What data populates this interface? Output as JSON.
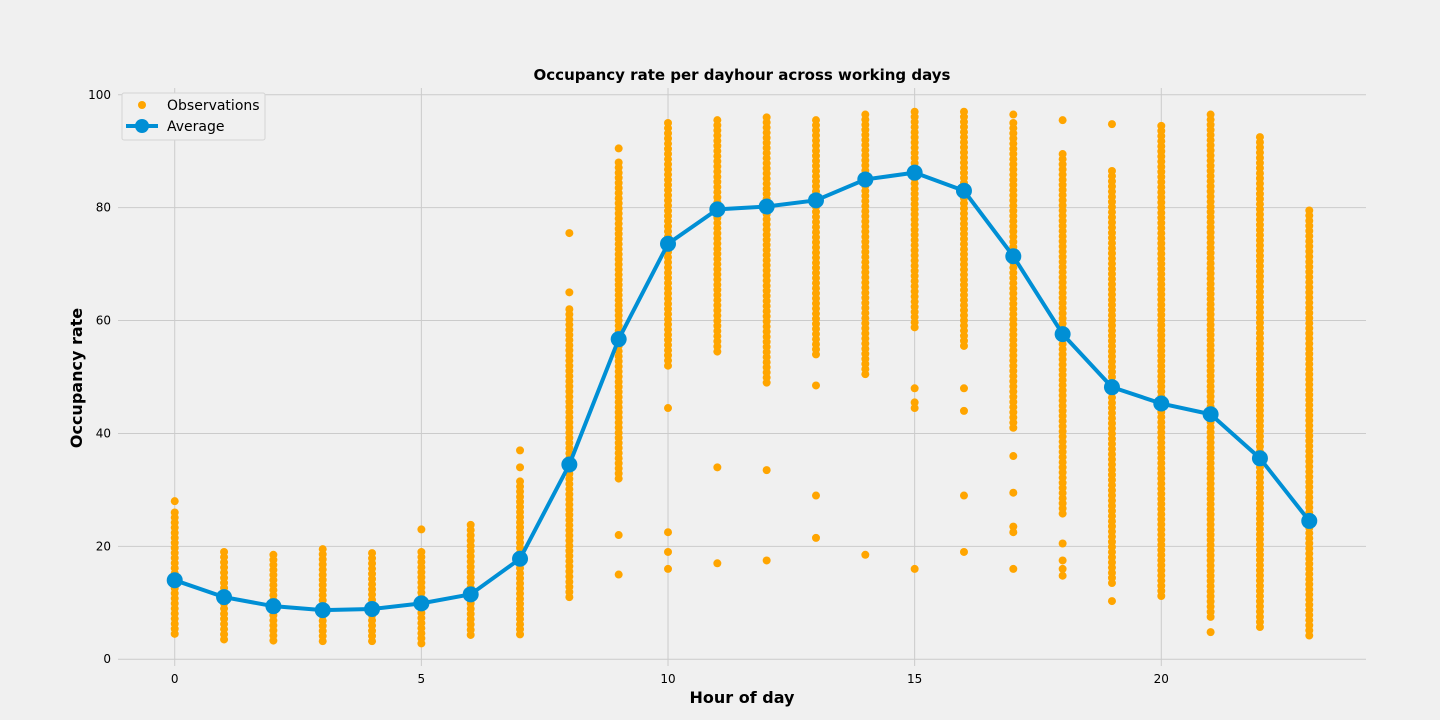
{
  "chart_data": {
    "type": "scatter",
    "title": "Occupancy rate per dayhour across working days",
    "xlabel": "Hour of day",
    "ylabel": "Occupancy rate",
    "xlim": [
      -1.15,
      24.15
    ],
    "ylim": [
      -1.2,
      101.2
    ],
    "xticks": [
      0,
      5,
      10,
      15,
      20
    ],
    "yticks": [
      0,
      20,
      40,
      60,
      80,
      100
    ],
    "grid": true,
    "legend_position": "top-left",
    "colors": {
      "observations": "#ffa500",
      "average": "#008fd5",
      "background": "#f0f0f0",
      "grid": "#cbcbcb"
    },
    "series": [
      {
        "name": "Observations",
        "kind": "scatter",
        "ranges": [
          {
            "x": 0,
            "min": 4.5,
            "max": 26,
            "outliers": [
              28
            ]
          },
          {
            "x": 1,
            "min": 3.5,
            "max": 19,
            "outliers": []
          },
          {
            "x": 2,
            "min": 3.3,
            "max": 18.5,
            "outliers": []
          },
          {
            "x": 3,
            "min": 3.2,
            "max": 19.5,
            "outliers": []
          },
          {
            "x": 4,
            "min": 3.2,
            "max": 18.8,
            "outliers": []
          },
          {
            "x": 5,
            "min": 2.8,
            "max": 19,
            "outliers": [
              23
            ]
          },
          {
            "x": 6,
            "min": 4.3,
            "max": 23.8,
            "outliers": []
          },
          {
            "x": 7,
            "min": 4.4,
            "max": 31.5,
            "outliers": [
              34,
              37
            ]
          },
          {
            "x": 8,
            "min": 11,
            "max": 62,
            "outliers": [
              65,
              75.5
            ]
          },
          {
            "x": 9,
            "min": 32,
            "max": 88,
            "outliers": [
              90.5,
              22,
              15
            ]
          },
          {
            "x": 10,
            "min": 52,
            "max": 95,
            "outliers": [
              44.5,
              22.5,
              19,
              16
            ]
          },
          {
            "x": 11,
            "min": 54.5,
            "max": 95.5,
            "outliers": [
              34,
              17
            ]
          },
          {
            "x": 12,
            "min": 49,
            "max": 96,
            "outliers": [
              33.5,
              17.5
            ]
          },
          {
            "x": 13,
            "min": 54,
            "max": 95.5,
            "outliers": [
              48.5,
              29,
              21.5
            ]
          },
          {
            "x": 14,
            "min": 50.5,
            "max": 96.5,
            "outliers": [
              18.5
            ]
          },
          {
            "x": 15,
            "min": 58.8,
            "max": 97,
            "outliers": [
              48,
              45.5,
              44.5,
              16
            ]
          },
          {
            "x": 16,
            "min": 55.5,
            "max": 97,
            "outliers": [
              48,
              44,
              29,
              19
            ]
          },
          {
            "x": 17,
            "min": 41,
            "max": 95,
            "outliers": [
              96.5,
              36,
              29.5,
              23.5,
              22.5,
              16
            ]
          },
          {
            "x": 18,
            "min": 25.8,
            "max": 89.5,
            "outliers": [
              95.5,
              20.5,
              17.5,
              16,
              14.8
            ]
          },
          {
            "x": 19,
            "min": 13.5,
            "max": 86.5,
            "outliers": [
              94.8,
              10.3
            ]
          },
          {
            "x": 20,
            "min": 11.2,
            "max": 94.5,
            "outliers": []
          },
          {
            "x": 21,
            "min": 7.5,
            "max": 96.5,
            "outliers": [
              4.8
            ]
          },
          {
            "x": 22,
            "min": 5.7,
            "max": 92.5,
            "outliers": []
          },
          {
            "x": 23,
            "min": 4.2,
            "max": 79.5,
            "outliers": []
          }
        ]
      },
      {
        "name": "Average",
        "kind": "line",
        "x": [
          0,
          1,
          2,
          3,
          4,
          5,
          6,
          7,
          8,
          9,
          10,
          11,
          12,
          13,
          14,
          15,
          16,
          17,
          18,
          19,
          20,
          21,
          22,
          23
        ],
        "values": [
          14,
          11,
          9.4,
          8.7,
          8.9,
          9.9,
          11.5,
          17.8,
          34.5,
          56.7,
          73.6,
          79.7,
          80.2,
          81.3,
          85,
          86.2,
          83,
          71.4,
          57.6,
          48.2,
          45.3,
          43.4,
          35.6,
          24.5
        ]
      }
    ]
  }
}
